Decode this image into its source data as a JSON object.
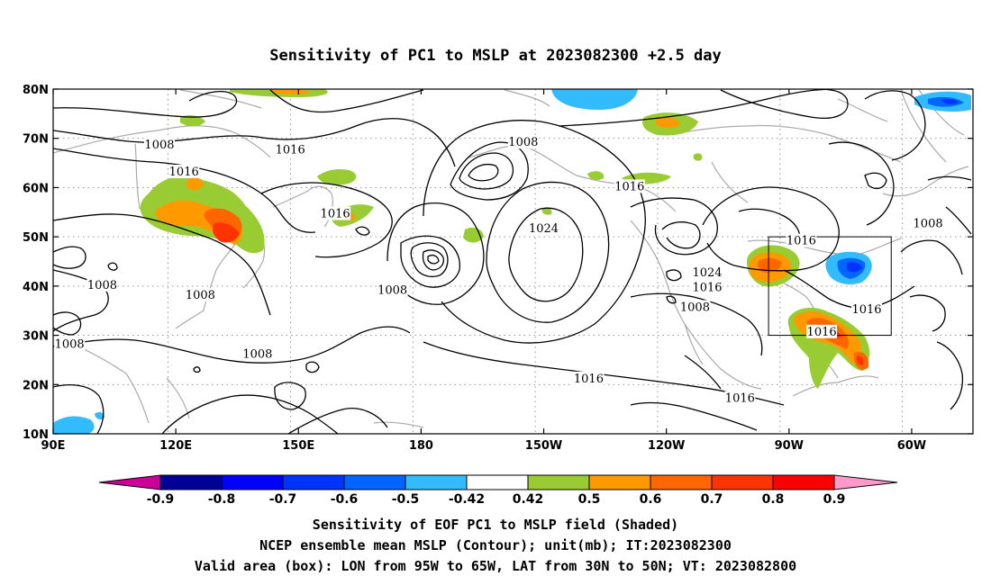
{
  "title": "Sensitivity of PC1 to MSLP at 2023082300 +2.5 day",
  "footer": {
    "line1": "Sensitivity of EOF PC1 to MSLP field (Shaded)",
    "line2": "NCEP ensemble mean MSLP (Contour); unit(mb); IT:2023082300",
    "line3": "Valid area (box): LON from 95W to 65W, LAT from 30N to 50N; VT: 2023082800"
  },
  "axes": {
    "x_ticks": [
      "90E",
      "120E",
      "150E",
      "180",
      "150W",
      "120W",
      "90W",
      "60W"
    ],
    "y_ticks": [
      "80N",
      "70N",
      "60N",
      "50N",
      "40N",
      "30N",
      "20N",
      "10N"
    ]
  },
  "colorbar": {
    "labels": [
      "-0.9",
      "-0.8",
      "-0.7",
      "-0.6",
      "-0.5",
      "-0.42",
      "0.42",
      "0.5",
      "0.6",
      "0.7",
      "0.8",
      "0.9"
    ],
    "colors": [
      "#000099",
      "#0000ff",
      "#0033ff",
      "#0066ff",
      "#33bbff",
      "#ffffff",
      "#99cc33",
      "#ff9900",
      "#ff6600",
      "#ff3300",
      "#ff0000"
    ],
    "low_cap_color": "#cc0099",
    "high_cap_color": "#ff99cc"
  },
  "contour_labels": [
    {
      "text": "1008",
      "lon": 116,
      "lat": 68.5
    },
    {
      "text": "1016",
      "lon": 148,
      "lat": 67.5
    },
    {
      "text": "1008",
      "lon": -155,
      "lat": 69
    },
    {
      "text": "1016",
      "lon": 122,
      "lat": 63
    },
    {
      "text": "1016",
      "lon": 159,
      "lat": 54.5
    },
    {
      "text": "1016",
      "lon": -129,
      "lat": 60
    },
    {
      "text": "1024",
      "lon": -150,
      "lat": 51.5
    },
    {
      "text": "1008",
      "lon": -56,
      "lat": 52.5
    },
    {
      "text": "1016",
      "lon": -87,
      "lat": 49
    },
    {
      "text": "1024",
      "lon": -110,
      "lat": 42.5
    },
    {
      "text": "1008",
      "lon": 102,
      "lat": 40
    },
    {
      "text": "1008",
      "lon": 173,
      "lat": 39
    },
    {
      "text": "1008",
      "lon": 126,
      "lat": 38
    },
    {
      "text": "1016",
      "lon": -110,
      "lat": 39.5
    },
    {
      "text": "1008",
      "lon": -113,
      "lat": 35.5
    },
    {
      "text": "1016",
      "lon": -71,
      "lat": 35
    },
    {
      "text": "1016",
      "lon": -82,
      "lat": 30.5
    },
    {
      "text": "1008",
      "lon": 94,
      "lat": 28
    },
    {
      "text": "1008",
      "lon": 140,
      "lat": 26
    },
    {
      "text": "1016",
      "lon": -139,
      "lat": 21
    },
    {
      "text": "1016",
      "lon": -102,
      "lat": 17
    }
  ],
  "valid_box": {
    "lon_min": -95,
    "lon_max": -65,
    "lat_min": 30,
    "lat_max": 50
  }
}
